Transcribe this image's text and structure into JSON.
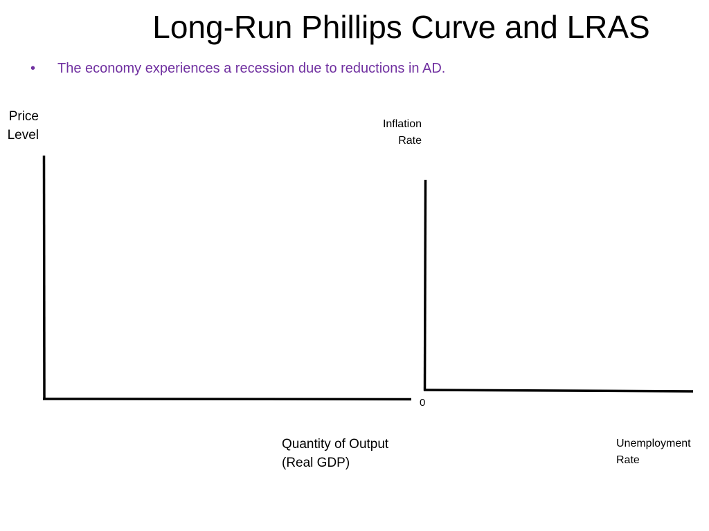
{
  "slide": {
    "title": "Long-Run Phillips Curve and LRAS",
    "bullets": [
      {
        "marker": "•",
        "text": "The economy experiences a recession due to reductions in AD."
      }
    ],
    "bullet_color": "#7030a0"
  },
  "left_graph": {
    "y_axis_label": [
      "Price",
      "Level"
    ],
    "x_axis_label": [
      "Quantity of Output",
      "(Real GDP)"
    ]
  },
  "right_graph": {
    "y_axis_label": [
      "Inflation",
      "Rate"
    ],
    "origin_label": "0",
    "x_axis_label": [
      "Unemployment",
      "Rate"
    ]
  }
}
